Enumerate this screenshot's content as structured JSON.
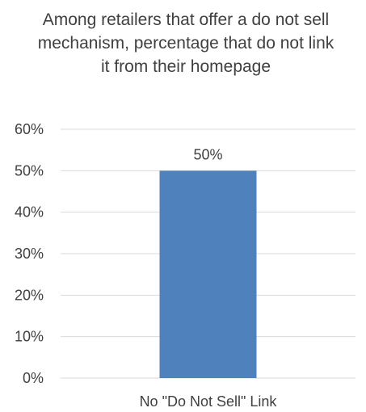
{
  "chart_data": {
    "type": "bar",
    "title": "Among retailers that offer a do not sell mechanism, percentage that do not link it from their homepage",
    "categories": [
      "No \"Do Not Sell\" Link"
    ],
    "values": [
      50
    ],
    "data_labels": [
      "50%"
    ],
    "ylim": [
      0,
      60
    ],
    "yticks": [
      0,
      10,
      20,
      30,
      40,
      50,
      60
    ],
    "ytick_labels": [
      "0%",
      "10%",
      "20%",
      "30%",
      "40%",
      "50%",
      "60%"
    ],
    "grid": true,
    "legend": "none",
    "bar_color": "#4F81BD",
    "grid_color": "#D9D9D9"
  }
}
